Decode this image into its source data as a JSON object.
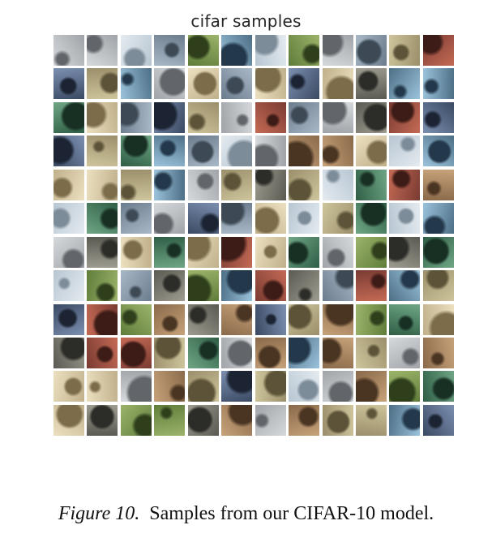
{
  "figure": {
    "title": "cifar samples",
    "caption_label": "Figure 10.",
    "caption_text": "Samples from our CIFAR-10 model.",
    "grid": {
      "rows": 12,
      "cols": 12
    }
  }
}
